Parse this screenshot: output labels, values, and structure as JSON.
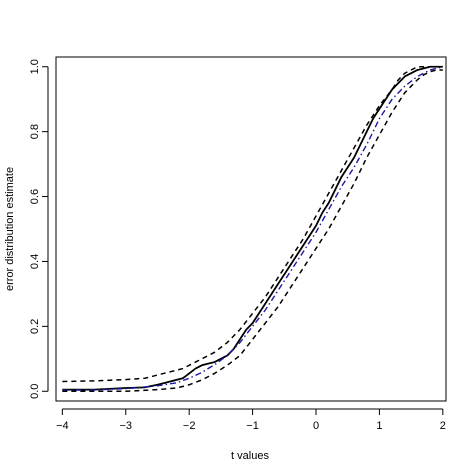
{
  "chart_data": {
    "type": "line",
    "title": "",
    "xlabel": "t values",
    "ylabel": "error distribution estimate",
    "xlim": [
      -4.1,
      2.05
    ],
    "ylim": [
      -0.03,
      1.03
    ],
    "x_ticks": [
      -4,
      -3,
      -2,
      -1,
      0,
      1,
      2
    ],
    "x_tick_labels": [
      "−4",
      "−3",
      "−2",
      "−1",
      "0",
      "1",
      "2"
    ],
    "y_ticks": [
      0.0,
      0.2,
      0.4,
      0.6,
      0.8,
      1.0
    ],
    "y_tick_labels": [
      "0.0",
      "0.2",
      "0.4",
      "0.6",
      "0.8",
      "1.0"
    ],
    "grid": false,
    "legend": "none",
    "series": [
      {
        "role": "estimate",
        "color": "#000000",
        "dash": "solid",
        "x": [
          -4.0,
          -3.5,
          -3.0,
          -2.7,
          -2.5,
          -2.3,
          -2.1,
          -2.0,
          -1.9,
          -1.8,
          -1.7,
          -1.6,
          -1.5,
          -1.4,
          -1.3,
          -1.2,
          -1.1,
          -1.0,
          -0.9,
          -0.8,
          -0.7,
          -0.6,
          -0.5,
          -0.4,
          -0.3,
          -0.2,
          -0.1,
          0.0,
          0.1,
          0.2,
          0.3,
          0.4,
          0.5,
          0.6,
          0.7,
          0.8,
          0.9,
          1.0,
          1.1,
          1.2,
          1.3,
          1.4,
          1.5,
          1.6,
          1.7,
          1.8,
          1.9,
          2.0
        ],
        "y": [
          0.005,
          0.005,
          0.01,
          0.012,
          0.02,
          0.03,
          0.04,
          0.055,
          0.07,
          0.08,
          0.085,
          0.09,
          0.1,
          0.11,
          0.13,
          0.16,
          0.19,
          0.21,
          0.24,
          0.27,
          0.3,
          0.33,
          0.36,
          0.39,
          0.42,
          0.45,
          0.48,
          0.51,
          0.55,
          0.58,
          0.62,
          0.66,
          0.69,
          0.72,
          0.76,
          0.8,
          0.84,
          0.87,
          0.9,
          0.93,
          0.95,
          0.97,
          0.98,
          0.99,
          0.995,
          1.0,
          1.0,
          1.0
        ]
      },
      {
        "role": "true",
        "color": "#1a1aa6",
        "dash": "dashdot",
        "x": [
          -4.0,
          -3.5,
          -3.0,
          -2.5,
          -2.2,
          -2.0,
          -1.8,
          -1.6,
          -1.4,
          -1.2,
          -1.0,
          -0.8,
          -0.6,
          -0.4,
          -0.2,
          0.0,
          0.2,
          0.4,
          0.6,
          0.8,
          1.0,
          1.2,
          1.4,
          1.6,
          1.8,
          2.0
        ],
        "y": [
          0.003,
          0.004,
          0.008,
          0.017,
          0.026,
          0.04,
          0.058,
          0.082,
          0.11,
          0.15,
          0.2,
          0.25,
          0.31,
          0.37,
          0.43,
          0.49,
          0.56,
          0.63,
          0.69,
          0.76,
          0.84,
          0.9,
          0.94,
          0.97,
          0.99,
          1.0
        ]
      },
      {
        "role": "upper-band",
        "color": "#000000",
        "dash": "dashed",
        "x": [
          -4.0,
          -3.5,
          -3.0,
          -2.7,
          -2.5,
          -2.3,
          -2.1,
          -2.0,
          -1.9,
          -1.8,
          -1.6,
          -1.4,
          -1.2,
          -1.0,
          -0.8,
          -0.6,
          -0.4,
          -0.2,
          0.0,
          0.2,
          0.4,
          0.6,
          0.8,
          1.0,
          1.2,
          1.3,
          1.4,
          1.5,
          1.6,
          1.7,
          1.8,
          1.9,
          2.0
        ],
        "y": [
          0.03,
          0.032,
          0.036,
          0.04,
          0.05,
          0.06,
          0.07,
          0.08,
          0.09,
          0.1,
          0.12,
          0.15,
          0.19,
          0.24,
          0.29,
          0.35,
          0.41,
          0.47,
          0.54,
          0.61,
          0.68,
          0.75,
          0.82,
          0.88,
          0.93,
          0.96,
          0.98,
          0.99,
          1.0,
          1.0,
          1.0,
          1.0,
          1.0
        ]
      },
      {
        "role": "lower-band",
        "color": "#000000",
        "dash": "dashed",
        "x": [
          -4.0,
          -3.5,
          -3.0,
          -2.5,
          -2.2,
          -2.0,
          -1.8,
          -1.6,
          -1.4,
          -1.2,
          -1.0,
          -0.8,
          -0.6,
          -0.4,
          -0.2,
          0.0,
          0.2,
          0.4,
          0.6,
          0.8,
          1.0,
          1.2,
          1.4,
          1.5,
          1.6,
          1.7,
          1.8,
          1.9,
          2.0
        ],
        "y": [
          0.0,
          0.0,
          0.0,
          0.005,
          0.01,
          0.02,
          0.035,
          0.055,
          0.08,
          0.11,
          0.16,
          0.21,
          0.26,
          0.32,
          0.38,
          0.44,
          0.5,
          0.57,
          0.64,
          0.72,
          0.79,
          0.86,
          0.92,
          0.94,
          0.96,
          0.975,
          0.985,
          0.99,
          0.99
        ]
      }
    ]
  }
}
